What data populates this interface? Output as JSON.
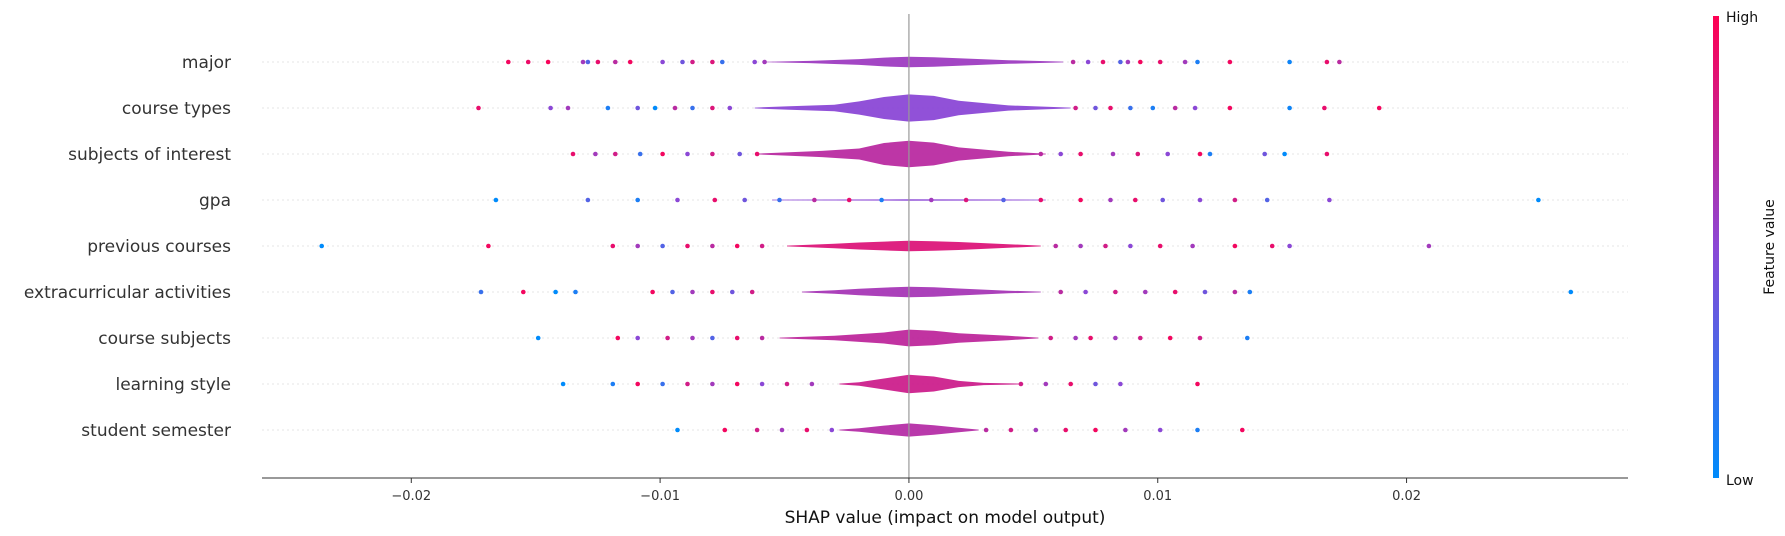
{
  "chart_data": {
    "type": "scatter",
    "subtype": "shap-violin-summary",
    "xlabel": "SHAP value (impact on model output)",
    "xlim": [
      -0.026,
      0.0289
    ],
    "xticks": [
      -0.02,
      -0.01,
      0.0,
      0.01,
      0.02
    ],
    "xtick_labels": [
      "−0.02",
      "−0.01",
      "0.00",
      "0.01",
      "0.02"
    ],
    "zero_line": 0.0,
    "colorbar": {
      "label": "Feature value",
      "high_label": "High",
      "low_label": "Low",
      "low_color": "#008bfb",
      "high_color": "#ff0052"
    },
    "grid": false,
    "features": [
      {
        "name": "major",
        "violin_half_width": [
          [
            -0.0059,
            0.003
          ],
          [
            -0.004,
            0.05
          ],
          [
            -0.002,
            0.13
          ],
          [
            -0.001,
            0.2
          ],
          [
            0.0,
            0.24
          ],
          [
            0.001,
            0.22
          ],
          [
            0.002,
            0.17
          ],
          [
            0.004,
            0.08
          ],
          [
            0.0062,
            0.02
          ]
        ],
        "violin_color_blend": 0.58,
        "points": [
          [
            -0.0161,
            0.95
          ],
          [
            -0.0153,
            0.92
          ],
          [
            -0.0145,
            0.97
          ],
          [
            -0.0131,
            0.6
          ],
          [
            -0.0129,
            0.3
          ],
          [
            -0.0125,
            0.9
          ],
          [
            -0.0118,
            0.7
          ],
          [
            -0.0112,
            0.95
          ],
          [
            -0.0099,
            0.5
          ],
          [
            -0.0091,
            0.4
          ],
          [
            -0.0087,
            0.8
          ],
          [
            -0.0079,
            0.85
          ],
          [
            -0.0075,
            0.2
          ],
          [
            -0.0062,
            0.5
          ],
          [
            -0.0058,
            0.6
          ],
          [
            0.0066,
            0.7
          ],
          [
            0.0072,
            0.5
          ],
          [
            0.0078,
            0.9
          ],
          [
            0.0085,
            0.3
          ],
          [
            0.0088,
            0.6
          ],
          [
            0.0093,
            0.95
          ],
          [
            0.0101,
            0.9
          ],
          [
            0.0111,
            0.6
          ],
          [
            0.0116,
            0.1
          ],
          [
            0.0129,
            0.95
          ],
          [
            0.0153,
            0.05
          ],
          [
            0.0168,
            0.9
          ],
          [
            0.0173,
            0.7
          ]
        ]
      },
      {
        "name": "course types",
        "violin_half_width": [
          [
            -0.0062,
            0.02
          ],
          [
            -0.0048,
            0.08
          ],
          [
            -0.003,
            0.15
          ],
          [
            -0.002,
            0.3
          ],
          [
            -0.001,
            0.5
          ],
          [
            0.0,
            0.62
          ],
          [
            0.001,
            0.55
          ],
          [
            0.002,
            0.33
          ],
          [
            0.004,
            0.12
          ],
          [
            0.0065,
            0.02
          ]
        ],
        "violin_color_blend": 0.5,
        "points": [
          [
            -0.0173,
            0.9
          ],
          [
            -0.0144,
            0.5
          ],
          [
            -0.0137,
            0.6
          ],
          [
            -0.0121,
            0.1
          ],
          [
            -0.0109,
            0.4
          ],
          [
            -0.0102,
            0.0
          ],
          [
            -0.0094,
            0.7
          ],
          [
            -0.0087,
            0.2
          ],
          [
            -0.0079,
            0.85
          ],
          [
            -0.0072,
            0.5
          ],
          [
            0.0067,
            0.8
          ],
          [
            0.0075,
            0.4
          ],
          [
            0.0081,
            0.9
          ],
          [
            0.0089,
            0.2
          ],
          [
            0.0098,
            0.1
          ],
          [
            0.0107,
            0.7
          ],
          [
            0.0115,
            0.5
          ],
          [
            0.0129,
            0.95
          ],
          [
            0.0153,
            0.05
          ],
          [
            0.0167,
            0.9
          ],
          [
            0.0189,
            0.95
          ]
        ]
      },
      {
        "name": "subjects of interest",
        "violin_half_width": [
          [
            -0.0061,
            0.02
          ],
          [
            -0.0048,
            0.08
          ],
          [
            -0.0035,
            0.14
          ],
          [
            -0.002,
            0.25
          ],
          [
            -0.001,
            0.5
          ],
          [
            0.0,
            0.6
          ],
          [
            0.001,
            0.52
          ],
          [
            0.002,
            0.3
          ],
          [
            0.004,
            0.1
          ],
          [
            0.0055,
            0.02
          ]
        ],
        "violin_color_blend": 0.7,
        "points": [
          [
            -0.0135,
            0.9
          ],
          [
            -0.0126,
            0.6
          ],
          [
            -0.0118,
            0.8
          ],
          [
            -0.0108,
            0.2
          ],
          [
            -0.0099,
            0.95
          ],
          [
            -0.0089,
            0.5
          ],
          [
            -0.0079,
            0.8
          ],
          [
            -0.0068,
            0.4
          ],
          [
            -0.0061,
            0.9
          ],
          [
            0.0053,
            0.7
          ],
          [
            0.0061,
            0.5
          ],
          [
            0.0069,
            0.9
          ],
          [
            0.0082,
            0.6
          ],
          [
            0.0092,
            0.85
          ],
          [
            0.0104,
            0.5
          ],
          [
            0.0117,
            0.95
          ],
          [
            0.0121,
            0.1
          ],
          [
            0.0143,
            0.4
          ],
          [
            0.0151,
            0.0
          ],
          [
            0.0168,
            0.9
          ]
        ]
      },
      {
        "name": "gpa",
        "violin_half_width": [
          [
            -0.0055,
            0.02
          ],
          [
            0.0,
            0.03
          ],
          [
            0.0055,
            0.02
          ]
        ],
        "violin_color_blend": 0.5,
        "points": [
          [
            -0.0166,
            0.0
          ],
          [
            -0.0129,
            0.3
          ],
          [
            -0.0109,
            0.1
          ],
          [
            -0.0093,
            0.5
          ],
          [
            -0.0078,
            0.9
          ],
          [
            -0.0066,
            0.4
          ],
          [
            -0.0052,
            0.2
          ],
          [
            -0.0038,
            0.7
          ],
          [
            -0.0024,
            0.9
          ],
          [
            -0.0011,
            0.1
          ],
          [
            0.0009,
            0.6
          ],
          [
            0.0023,
            0.85
          ],
          [
            0.0038,
            0.3
          ],
          [
            0.0053,
            0.9
          ],
          [
            0.0069,
            0.95
          ],
          [
            0.0081,
            0.6
          ],
          [
            0.0091,
            0.9
          ],
          [
            0.0102,
            0.4
          ],
          [
            0.0117,
            0.5
          ],
          [
            0.0131,
            0.8
          ],
          [
            0.0144,
            0.3
          ],
          [
            0.0169,
            0.5
          ],
          [
            0.0253,
            0.0
          ]
        ]
      },
      {
        "name": "previous courses",
        "violin_half_width": [
          [
            -0.0049,
            0.02
          ],
          [
            -0.003,
            0.1
          ],
          [
            -0.002,
            0.16
          ],
          [
            -0.001,
            0.2
          ],
          [
            0.0,
            0.24
          ],
          [
            0.001,
            0.22
          ],
          [
            0.002,
            0.18
          ],
          [
            0.004,
            0.08
          ],
          [
            0.0053,
            0.02
          ]
        ],
        "violin_color_blend": 0.85,
        "points": [
          [
            -0.0236,
            0.0
          ],
          [
            -0.0169,
            0.95
          ],
          [
            -0.0119,
            0.9
          ],
          [
            -0.0109,
            0.6
          ],
          [
            -0.0099,
            0.3
          ],
          [
            -0.0089,
            0.9
          ],
          [
            -0.0079,
            0.7
          ],
          [
            -0.0069,
            0.95
          ],
          [
            -0.0059,
            0.8
          ],
          [
            0.0059,
            0.7
          ],
          [
            0.0069,
            0.6
          ],
          [
            0.0079,
            0.8
          ],
          [
            0.0089,
            0.5
          ],
          [
            0.0101,
            0.9
          ],
          [
            0.0114,
            0.6
          ],
          [
            0.0131,
            0.95
          ],
          [
            0.0146,
            0.9
          ],
          [
            0.0153,
            0.5
          ],
          [
            0.0209,
            0.6
          ]
        ]
      },
      {
        "name": "extracurricular activities",
        "violin_half_width": [
          [
            -0.0043,
            0.02
          ],
          [
            -0.003,
            0.08
          ],
          [
            -0.002,
            0.15
          ],
          [
            -0.001,
            0.2
          ],
          [
            0.0,
            0.24
          ],
          [
            0.001,
            0.22
          ],
          [
            0.002,
            0.16
          ],
          [
            0.004,
            0.06
          ],
          [
            0.0053,
            0.02
          ]
        ],
        "violin_color_blend": 0.62,
        "points": [
          [
            -0.0172,
            0.2
          ],
          [
            -0.0155,
            0.95
          ],
          [
            -0.0142,
            0.0
          ],
          [
            -0.0134,
            0.1
          ],
          [
            -0.0103,
            0.95
          ],
          [
            -0.0095,
            0.3
          ],
          [
            -0.0087,
            0.6
          ],
          [
            -0.0079,
            0.9
          ],
          [
            -0.0071,
            0.4
          ],
          [
            -0.0063,
            0.8
          ],
          [
            0.0061,
            0.7
          ],
          [
            0.0071,
            0.5
          ],
          [
            0.0083,
            0.8
          ],
          [
            0.0095,
            0.6
          ],
          [
            0.0107,
            0.9
          ],
          [
            0.0119,
            0.4
          ],
          [
            0.0131,
            0.7
          ],
          [
            0.0137,
            0.1
          ],
          [
            0.0266,
            0.0
          ]
        ]
      },
      {
        "name": "course subjects",
        "violin_half_width": [
          [
            -0.0052,
            0.02
          ],
          [
            -0.003,
            0.1
          ],
          [
            -0.001,
            0.25
          ],
          [
            0.0,
            0.38
          ],
          [
            0.001,
            0.33
          ],
          [
            0.002,
            0.22
          ],
          [
            0.004,
            0.1
          ],
          [
            0.0052,
            0.02
          ]
        ],
        "violin_color_blend": 0.72,
        "points": [
          [
            -0.0149,
            0.0
          ],
          [
            -0.0117,
            0.95
          ],
          [
            -0.0109,
            0.5
          ],
          [
            -0.0097,
            0.8
          ],
          [
            -0.0087,
            0.6
          ],
          [
            -0.0079,
            0.3
          ],
          [
            -0.0069,
            0.9
          ],
          [
            -0.0059,
            0.7
          ],
          [
            0.0057,
            0.8
          ],
          [
            0.0067,
            0.6
          ],
          [
            0.0073,
            0.9
          ],
          [
            0.0083,
            0.6
          ],
          [
            0.0093,
            0.8
          ],
          [
            0.0105,
            0.95
          ],
          [
            0.0117,
            0.8
          ],
          [
            0.0136,
            0.1
          ]
        ]
      },
      {
        "name": "learning style",
        "violin_half_width": [
          [
            -0.0028,
            0.02
          ],
          [
            -0.002,
            0.08
          ],
          [
            -0.001,
            0.25
          ],
          [
            0.0,
            0.42
          ],
          [
            0.001,
            0.34
          ],
          [
            0.002,
            0.14
          ],
          [
            0.003,
            0.05
          ],
          [
            0.0045,
            0.02
          ]
        ],
        "violin_color_blend": 0.78,
        "points": [
          [
            -0.0139,
            0.0
          ],
          [
            -0.0119,
            0.1
          ],
          [
            -0.0109,
            0.95
          ],
          [
            -0.0099,
            0.2
          ],
          [
            -0.0089,
            0.8
          ],
          [
            -0.0079,
            0.6
          ],
          [
            -0.0069,
            0.95
          ],
          [
            -0.0059,
            0.5
          ],
          [
            -0.0049,
            0.8
          ],
          [
            -0.0039,
            0.6
          ],
          [
            0.0045,
            0.8
          ],
          [
            0.0055,
            0.6
          ],
          [
            0.0065,
            0.9
          ],
          [
            0.0075,
            0.4
          ],
          [
            0.0085,
            0.5
          ],
          [
            0.0116,
            0.95
          ]
        ]
      },
      {
        "name": "student semester",
        "violin_half_width": [
          [
            -0.0028,
            0.02
          ],
          [
            -0.002,
            0.08
          ],
          [
            -0.001,
            0.2
          ],
          [
            0.0,
            0.3
          ],
          [
            0.001,
            0.22
          ],
          [
            0.002,
            0.1
          ],
          [
            0.0028,
            0.02
          ]
        ],
        "violin_color_blend": 0.68,
        "points": [
          [
            -0.0093,
            0.0
          ],
          [
            -0.0074,
            0.95
          ],
          [
            -0.0061,
            0.8
          ],
          [
            -0.0051,
            0.6
          ],
          [
            -0.0041,
            0.9
          ],
          [
            -0.0031,
            0.5
          ],
          [
            0.0031,
            0.7
          ],
          [
            0.0041,
            0.8
          ],
          [
            0.0051,
            0.6
          ],
          [
            0.0063,
            0.9
          ],
          [
            0.0075,
            0.95
          ],
          [
            0.0087,
            0.6
          ],
          [
            0.0101,
            0.5
          ],
          [
            0.0116,
            0.1
          ],
          [
            0.0134,
            0.95
          ]
        ]
      }
    ]
  }
}
